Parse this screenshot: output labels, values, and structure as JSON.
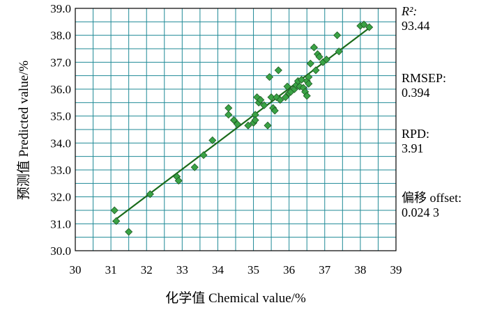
{
  "chart_data": {
    "type": "scatter",
    "xlabel": "化学值  Chemical value/%",
    "ylabel": "预测值  Predicted value/%",
    "xlim": [
      30,
      39
    ],
    "ylim": [
      30.0,
      39.0
    ],
    "xticks": [
      "30",
      "31",
      "32",
      "33",
      "34",
      "35",
      "36",
      "37",
      "38",
      "39"
    ],
    "yticks": [
      "30.0",
      "31.0",
      "32.0",
      "33.0",
      "34.0",
      "35.0",
      "36.0",
      "37.0",
      "38.0",
      "39.0"
    ],
    "grid": true,
    "marker_color": "#3aa345",
    "line_color": "#1a6b1a",
    "grid_color": "#1f8a96",
    "fit_line": {
      "x": [
        31.05,
        38.3
      ],
      "y": [
        31.08,
        38.32
      ]
    },
    "points": [
      [
        31.1,
        31.5
      ],
      [
        31.15,
        31.1
      ],
      [
        31.5,
        30.7
      ],
      [
        32.1,
        32.1
      ],
      [
        32.85,
        32.75
      ],
      [
        32.9,
        32.6
      ],
      [
        33.35,
        33.1
      ],
      [
        33.6,
        33.55
      ],
      [
        33.85,
        34.1
      ],
      [
        34.3,
        35.3
      ],
      [
        34.3,
        35.05
      ],
      [
        34.45,
        34.85
      ],
      [
        34.55,
        34.7
      ],
      [
        34.85,
        34.65
      ],
      [
        35.0,
        34.75
      ],
      [
        35.05,
        35.05
      ],
      [
        35.05,
        34.85
      ],
      [
        35.1,
        35.7
      ],
      [
        35.15,
        35.5
      ],
      [
        35.2,
        35.6
      ],
      [
        35.3,
        35.4
      ],
      [
        35.4,
        34.65
      ],
      [
        35.45,
        36.45
      ],
      [
        35.5,
        35.7
      ],
      [
        35.55,
        35.3
      ],
      [
        35.6,
        35.2
      ],
      [
        35.65,
        35.7
      ],
      [
        35.7,
        36.7
      ],
      [
        35.75,
        35.6
      ],
      [
        35.9,
        35.7
      ],
      [
        35.95,
        36.1
      ],
      [
        36.0,
        35.85
      ],
      [
        36.05,
        35.9
      ],
      [
        36.15,
        36.0
      ],
      [
        36.2,
        36.15
      ],
      [
        36.25,
        36.3
      ],
      [
        36.3,
        36.1
      ],
      [
        36.35,
        36.35
      ],
      [
        36.4,
        36.05
      ],
      [
        36.45,
        35.9
      ],
      [
        36.5,
        35.75
      ],
      [
        36.5,
        36.3
      ],
      [
        36.55,
        36.45
      ],
      [
        36.6,
        36.95
      ],
      [
        36.55,
        36.2
      ],
      [
        36.7,
        37.55
      ],
      [
        36.75,
        36.7
      ],
      [
        36.8,
        37.3
      ],
      [
        36.85,
        37.2
      ],
      [
        36.95,
        37.0
      ],
      [
        37.05,
        37.1
      ],
      [
        37.35,
        38.0
      ],
      [
        37.4,
        37.4
      ],
      [
        38.0,
        38.35
      ],
      [
        38.1,
        38.4
      ],
      [
        38.25,
        38.3
      ]
    ]
  },
  "stats": {
    "r2_label": "R²:",
    "r2_value": "93.44",
    "rmsep_label": "RMSEP:",
    "rmsep_value": "0.394",
    "rpd_label": "RPD:",
    "rpd_value": "3.91",
    "offset_label": "偏移  offset:",
    "offset_value": "0.024 3"
  }
}
